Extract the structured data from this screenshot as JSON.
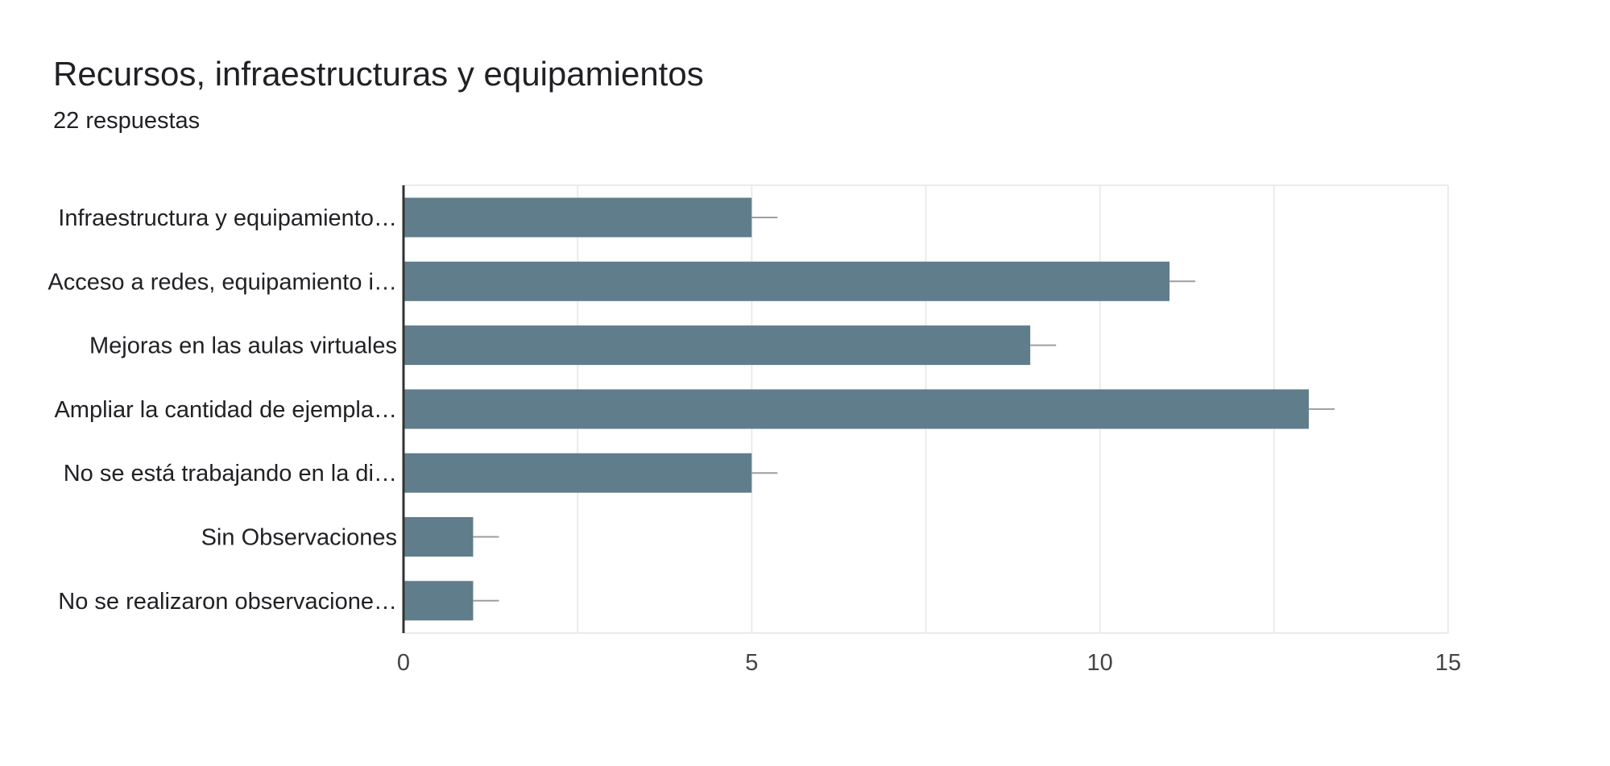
{
  "header": {
    "title": "Recursos, infraestructuras y equipamientos",
    "subtitle": "22 respuestas"
  },
  "colors": {
    "bar": "#607d8b",
    "grid": "#ebebeb",
    "axis": "#333333",
    "error_bar": "#9e9e9e"
  },
  "chart_data": {
    "type": "bar",
    "orientation": "horizontal",
    "categories": [
      "Infraestructura y equipamiento…",
      "Acceso a redes, equipamiento i…",
      "Mejoras en las aulas virtuales",
      "Ampliar la cantidad de ejempla…",
      "No se está trabajando en la di…",
      "Sin Observaciones",
      "No se realizaron observacione…"
    ],
    "values": [
      5,
      11,
      9,
      13,
      5,
      1,
      1
    ],
    "xlim": [
      0,
      15
    ],
    "xticks": [
      0,
      5,
      10,
      15
    ],
    "grid": true
  }
}
